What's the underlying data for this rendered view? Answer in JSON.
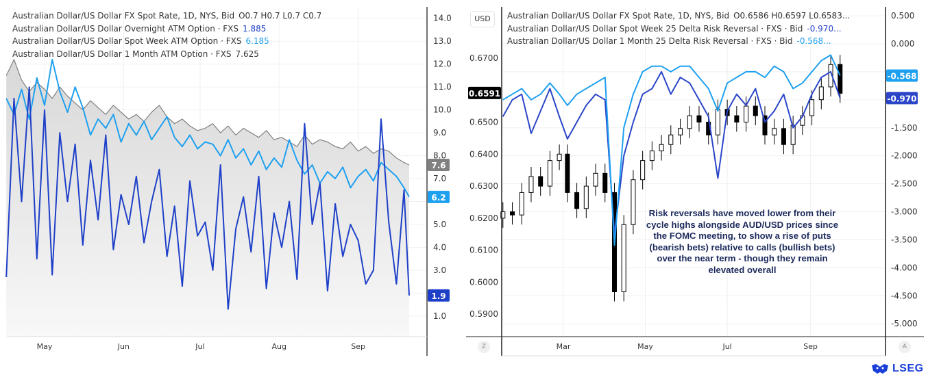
{
  "chart_data": [
    {
      "type": "line",
      "panel": "left",
      "legend_header": {
        "text": "Australian Dollar/US Dollar FX Spot Rate, 1D, NYS, Bid",
        "ohlc": "O0.7  H0.7  L0.7  C0.7"
      },
      "x_ticks": [
        "May",
        "Jun",
        "Jul",
        "Aug",
        "Sep"
      ],
      "y_ticks": [
        "14.0",
        "13.0",
        "12.0",
        "11.0",
        "10.0",
        "9.0",
        "8.0",
        "7.0",
        "5.0",
        "4.0",
        "3.0",
        "1.0"
      ],
      "ylim": [
        0.1,
        14.5
      ],
      "grid": true,
      "legend_placement": "top-left",
      "x": [
        "Apr 16",
        "Apr 19",
        "Apr 22",
        "Apr 25",
        "Apr 28",
        "May 1",
        "May 4",
        "May 7",
        "May 10",
        "May 13",
        "May 16",
        "May 19",
        "May 22",
        "May 25",
        "May 28",
        "May 31",
        "Jun 3",
        "Jun 6",
        "Jun 9",
        "Jun 12",
        "Jun 15",
        "Jun 18",
        "Jun 21",
        "Jun 24",
        "Jun 27",
        "Jun 30",
        "Jul 3",
        "Jul 6",
        "Jul 9",
        "Jul 12",
        "Jul 15",
        "Jul 18",
        "Jul 21",
        "Jul 24",
        "Jul 27",
        "Jul 30",
        "Aug 2",
        "Aug 5",
        "Aug 8",
        "Aug 11",
        "Aug 14",
        "Aug 17",
        "Aug 20",
        "Aug 23",
        "Aug 26",
        "Aug 29",
        "Sep 1",
        "Sep 4",
        "Sep 7",
        "Sep 10",
        "Sep 13",
        "Sep 16",
        "Sep 19",
        "Sep 21"
      ],
      "series": [
        {
          "name": "Australian Dollar/US Dollar Overnight ATM Option · FXS",
          "last": "1.885",
          "tag": "1.9",
          "color": "#1e40c8",
          "values": [
            2.7,
            10.5,
            6.0,
            11.0,
            3.5,
            10.0,
            2.8,
            9.0,
            6.0,
            8.5,
            4.1,
            7.8,
            5.2,
            8.9,
            3.9,
            6.3,
            5.0,
            7.1,
            4.2,
            6.0,
            7.4,
            3.6,
            5.8,
            2.3,
            6.9,
            4.5,
            5.1,
            3.0,
            7.6,
            1.3,
            4.8,
            6.2,
            3.8,
            7.1,
            2.2,
            5.5,
            4.0,
            6.0,
            2.6,
            9.4,
            5.0,
            6.8,
            2.1,
            5.9,
            3.6,
            5.0,
            4.3,
            2.4,
            3.0,
            9.6,
            5.1,
            2.4,
            6.5,
            1.9
          ]
        },
        {
          "name": "Australian Dollar/US Dollar Spot Week ATM Option · FXS",
          "last": "6.185",
          "tag": "6.2",
          "color": "#1ea0f0",
          "values": [
            10.5,
            9.8,
            10.9,
            9.6,
            11.4,
            10.2,
            12.2,
            10.8,
            9.9,
            11.0,
            10.1,
            8.9,
            9.6,
            9.2,
            9.8,
            8.6,
            9.4,
            8.9,
            9.5,
            8.7,
            9.2,
            9.7,
            8.8,
            8.4,
            8.9,
            8.3,
            8.6,
            8.5,
            8.0,
            8.7,
            7.9,
            8.3,
            7.6,
            8.2,
            7.4,
            7.9,
            7.5,
            8.7,
            7.8,
            7.2,
            7.6,
            6.8,
            7.3,
            7.0,
            7.5,
            6.6,
            7.1,
            7.4,
            6.9,
            7.7,
            7.4,
            7.1,
            6.6,
            6.2
          ]
        },
        {
          "name": "Australian Dollar/US Dollar 1 Month ATM Option · FXS",
          "last": "7.625",
          "tag": "7.6",
          "color": "#808080",
          "values": [
            11.5,
            12.2,
            11.3,
            10.8,
            11.2,
            10.9,
            10.5,
            11.0,
            10.6,
            10.3,
            10.0,
            10.4,
            10.1,
            9.8,
            10.2,
            9.9,
            9.6,
            9.8,
            9.5,
            9.9,
            10.2,
            9.7,
            9.4,
            9.6,
            9.3,
            9.1,
            9.2,
            9.4,
            9.0,
            9.3,
            8.9,
            9.2,
            9.0,
            8.8,
            9.1,
            8.7,
            8.8,
            8.6,
            8.4,
            8.9,
            8.5,
            8.7,
            8.6,
            8.4,
            8.3,
            8.6,
            8.2,
            8.4,
            8.1,
            8.3,
            8.2,
            7.9,
            7.7,
            7.6
          ]
        }
      ]
    },
    {
      "type": "line",
      "panel": "right",
      "currency_label": "USD",
      "legend_header": {
        "text": "Australian Dollar/US Dollar FX Spot Rate, 1D, NYS, Bid",
        "ohlc": "O0.6586  H0.6597  L0.6583..."
      },
      "x_ticks": [
        "Mar",
        "May",
        "Jul",
        "Sep"
      ],
      "left_y_ticks": [
        "0.6700",
        "0.6500",
        "0.6400",
        "0.6300",
        "0.6200",
        "0.6100",
        "0.6000",
        "0.5900"
      ],
      "left_ylim": [
        0.583,
        0.686
      ],
      "right_y_ticks": [
        "0.500",
        "0.000",
        "-1.500",
        "-2.000",
        "-2.500",
        "-3.000",
        "-3.500",
        "-4.000",
        "-4.500",
        "-5.000"
      ],
      "right_ylim": [
        -5.23,
        0.66
      ],
      "grid": true,
      "legend_placement": "top-left",
      "x": [
        "Jan 15",
        "Jan 22",
        "Jan 29",
        "Feb 5",
        "Feb 12",
        "Feb 19",
        "Feb 26",
        "Mar 4",
        "Mar 11",
        "Mar 18",
        "Mar 25",
        "Apr 1",
        "Apr 8",
        "Apr 15",
        "Apr 22",
        "Apr 29",
        "May 6",
        "May 13",
        "May 20",
        "May 27",
        "Jun 3",
        "Jun 10",
        "Jun 17",
        "Jun 24",
        "Jul 1",
        "Jul 8",
        "Jul 15",
        "Jul 22",
        "Jul 29",
        "Aug 5",
        "Aug 12",
        "Aug 19",
        "Aug 26",
        "Sep 2",
        "Sep 9",
        "Sep 16",
        "Sep 23"
      ],
      "spot": {
        "name": "Australian Dollar/US Dollar FX Spot Rate",
        "type": "candlestick",
        "axis": "left",
        "tag": "0.6591",
        "color": "#000000",
        "close": [
          0.622,
          0.621,
          0.628,
          0.633,
          0.63,
          0.638,
          0.64,
          0.628,
          0.623,
          0.63,
          0.634,
          0.628,
          0.597,
          0.618,
          0.632,
          0.638,
          0.641,
          0.643,
          0.646,
          0.648,
          0.652,
          0.65,
          0.646,
          0.654,
          0.652,
          0.65,
          0.655,
          0.652,
          0.646,
          0.648,
          0.643,
          0.649,
          0.652,
          0.657,
          0.661,
          0.668,
          0.659
        ]
      },
      "series": [
        {
          "name": "Australian Dollar/US Dollar Spot Week 25 Delta Risk Reversal · FXS · Bid",
          "last": "-0.970...",
          "tag": "-0.970",
          "axis": "right",
          "color": "#2a45c8",
          "values": [
            -1.3,
            -1.0,
            -0.9,
            -1.6,
            -1.2,
            -0.8,
            -1.3,
            -1.7,
            -1.4,
            -1.1,
            -0.9,
            -1.0,
            -3.4,
            -2.0,
            -1.4,
            -0.9,
            -0.8,
            -0.5,
            -0.9,
            -0.6,
            -0.7,
            -1.0,
            -1.3,
            -2.4,
            -1.2,
            -0.9,
            -1.1,
            -0.8,
            -1.4,
            -1.2,
            -0.9,
            -1.5,
            -1.3,
            -0.9,
            -0.6,
            -0.5,
            -0.97
          ]
        },
        {
          "name": "Australian Dollar/US Dollar 1 Month 25 Delta Risk Reversal · FXS · Bid",
          "last": "-0.568...",
          "tag": "-0.568",
          "axis": "right",
          "color": "#1ea0f0",
          "values": [
            -1.0,
            -0.9,
            -0.8,
            -1.0,
            -0.9,
            -0.7,
            -0.9,
            -1.1,
            -0.9,
            -0.8,
            -0.7,
            -0.6,
            -3.6,
            -1.5,
            -0.9,
            -0.5,
            -0.4,
            -0.4,
            -0.5,
            -0.4,
            -0.4,
            -0.6,
            -0.8,
            -1.2,
            -0.7,
            -0.6,
            -0.5,
            -0.5,
            -0.6,
            -0.4,
            -0.5,
            -0.8,
            -0.7,
            -0.5,
            -0.3,
            -0.2,
            -0.568
          ]
        }
      ],
      "annotation": "Risk reversals have moved lower from their cycle highs alongside AUD/USD prices since the FOMC meeting, to show a rise of puts (bearish bets) relative to calls (bullish bets) over the near term - though they remain elevated overall"
    }
  ],
  "controls": {
    "zoom_reset": "Z",
    "auto_scale": "A"
  },
  "brand": {
    "logo_text": "LSEG",
    "color": "#1a3fd9"
  }
}
